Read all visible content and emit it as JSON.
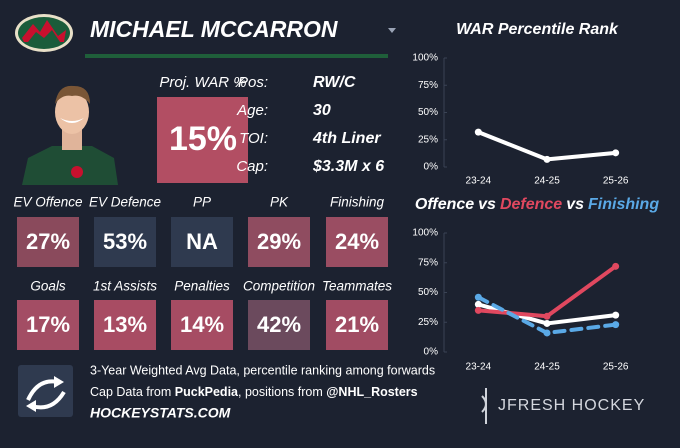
{
  "header": {
    "name": "MICHAEL MCCARRON"
  },
  "projection": {
    "label": "Proj. WAR %",
    "value": "15%",
    "color": "#b24e63"
  },
  "info": [
    {
      "label": "Pos:",
      "value": "RW/C"
    },
    {
      "label": "Age:",
      "value": "30"
    },
    {
      "label": "TOI:",
      "value": "4th Liner"
    },
    {
      "label": "Cap:",
      "value": "$3.3M x 6"
    }
  ],
  "stats": [
    [
      {
        "label": "EV Offence",
        "value": "27%",
        "color": "#8a4a5c"
      },
      {
        "label": "EV Defence",
        "value": "53%",
        "color": "#2f3a4f"
      },
      {
        "label": "PP",
        "value": "NA",
        "color": "#2f3a4f"
      },
      {
        "label": "PK",
        "value": "29%",
        "color": "#8f4c60"
      },
      {
        "label": "Finishing",
        "value": "24%",
        "color": "#9a4d62"
      }
    ],
    [
      {
        "label": "Goals",
        "value": "17%",
        "color": "#a34d64"
      },
      {
        "label": "1st Assists",
        "value": "13%",
        "color": "#a84c63"
      },
      {
        "label": "Penalties",
        "value": "14%",
        "color": "#a64c63"
      },
      {
        "label": "Competition",
        "value": "42%",
        "color": "#6b4a5d"
      },
      {
        "label": "Teammates",
        "value": "21%",
        "color": "#a14c63"
      }
    ]
  ],
  "footer": {
    "note": "3-Year Weighted Avg Data, percentile ranking among forwards",
    "credits": [
      "Cap Data from ",
      "PuckPedia",
      ", positions from ",
      "@NHL_Rosters"
    ],
    "site": "HOCKEYSTATS.COM",
    "brand": "JFRESH HOCKEY"
  },
  "chart_data": [
    {
      "type": "line",
      "title": "WAR Percentile Rank",
      "categories": [
        "23-24",
        "24-25",
        "25-26"
      ],
      "series": [
        {
          "name": "WAR",
          "color": "#ffffff",
          "values": [
            32,
            7,
            13
          ]
        }
      ],
      "ylim": [
        0,
        100
      ],
      "yticks": [
        {
          "value": 0,
          "label": "0%"
        },
        {
          "value": 25,
          "label": "25%"
        },
        {
          "value": 50,
          "label": "50%"
        },
        {
          "value": 75,
          "label": "75%"
        },
        {
          "value": 100,
          "label": "100%"
        }
      ],
      "grid": false
    },
    {
      "type": "line",
      "title_joiner": "vs",
      "categories": [
        "23-24",
        "24-25",
        "25-26"
      ],
      "series": [
        {
          "name": "Offence",
          "color": "#ffffff",
          "values": [
            40,
            24,
            31
          ]
        },
        {
          "name": "Defence",
          "color": "#e0485f",
          "values": [
            35,
            30,
            72
          ]
        },
        {
          "name": "Finishing",
          "color": "#5aa9e6",
          "values": [
            46,
            16,
            23
          ],
          "dashed": true
        }
      ],
      "ylim": [
        0,
        100
      ],
      "yticks": [
        {
          "value": 0,
          "label": "0%"
        },
        {
          "value": 25,
          "label": "25%"
        },
        {
          "value": 50,
          "label": "50%"
        },
        {
          "value": 75,
          "label": "75%"
        },
        {
          "value": 100,
          "label": "100%"
        }
      ],
      "grid": false
    }
  ]
}
